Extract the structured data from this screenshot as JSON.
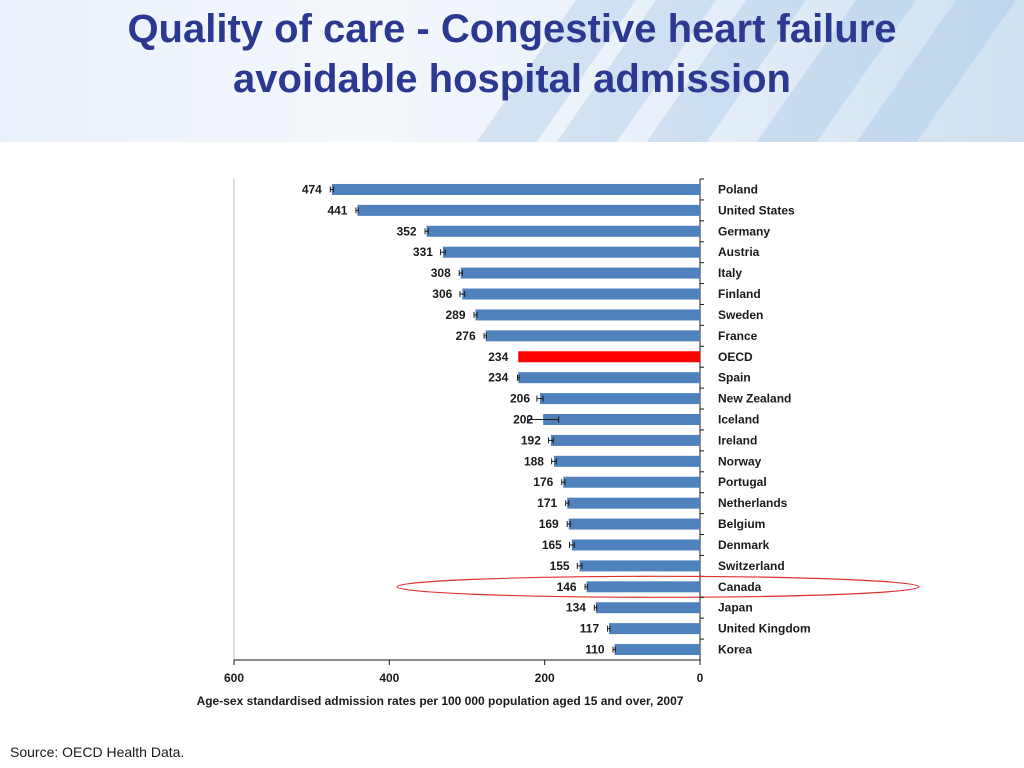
{
  "slide": {
    "title_line1": "Quality of care - Congestive heart failure",
    "title_line2": "avoidable hospital admission",
    "source": "Source: OECD Health Data."
  },
  "colors": {
    "title": "#2b3990",
    "bar": "#4f81bd",
    "highlight_bar": "#ff0000",
    "callout_ellipse": "#e03030"
  },
  "chart_data": {
    "type": "bar",
    "orientation": "horizontal",
    "xlabel": "Age-sex standardised admission rates per 100 000 population aged 15 and over, 2007",
    "xlim": [
      0,
      600
    ],
    "x_reversed": true,
    "x_ticks": [
      "600",
      "400",
      "200",
      "0"
    ],
    "grid": false,
    "highlight_category": "OECD",
    "circled_category": "Canada",
    "categories": [
      "Poland",
      "United States",
      "Germany",
      "Austria",
      "Italy",
      "Finland",
      "Sweden",
      "France",
      "OECD",
      "Spain",
      "New Zealand",
      "Iceland",
      "Ireland",
      "Norway",
      "Portugal",
      "Netherlands",
      "Belgium",
      "Denmark",
      "Switzerland",
      "Canada",
      "Japan",
      "United Kingdom",
      "Korea"
    ],
    "values": [
      474,
      441,
      352,
      331,
      308,
      306,
      289,
      276,
      234,
      234,
      206,
      202,
      192,
      188,
      176,
      171,
      169,
      165,
      155,
      146,
      134,
      117,
      110
    ],
    "error_low": [
      472,
      440,
      350,
      328,
      306,
      303,
      287,
      275,
      null,
      233,
      202,
      182,
      189,
      185,
      174,
      169,
      167,
      162,
      152,
      145,
      133,
      116,
      109
    ],
    "error_high": [
      476,
      443,
      354,
      334,
      310,
      309,
      291,
      278,
      null,
      235,
      210,
      222,
      195,
      191,
      178,
      173,
      171,
      168,
      158,
      148,
      136,
      119,
      112
    ]
  }
}
